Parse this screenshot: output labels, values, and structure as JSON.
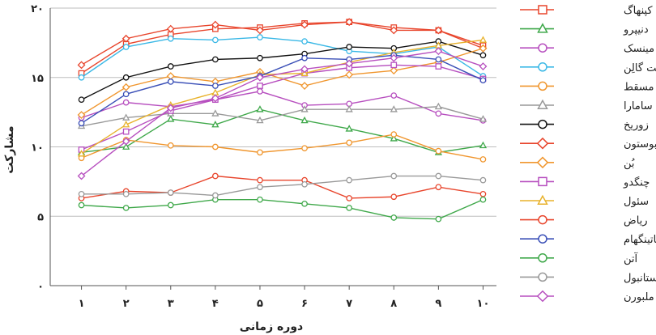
{
  "chart_data": {
    "type": "line",
    "xlabel": "دوره زمانی",
    "ylabel": "مشارکت",
    "x": [
      1,
      2,
      3,
      4,
      5,
      6,
      7,
      8,
      9,
      10
    ],
    "x_tick_labels": [
      "۱",
      "۲",
      "۳",
      "۴",
      "۵",
      "۶",
      "۷",
      "۸",
      "۹",
      "۱۰"
    ],
    "y_ticks": [
      0,
      5,
      10,
      15,
      20
    ],
    "y_tick_labels": [
      "۰",
      "۵",
      "۱۰",
      "۱۵",
      "۲۰"
    ],
    "ylim": [
      0,
      20
    ],
    "xlim": [
      0.3,
      10.3
    ],
    "grid": "horizontal",
    "legend_position": "right",
    "series": [
      {
        "name": "کپنهاگ",
        "color": "#e8452c",
        "marker": "square",
        "values": [
          15.3,
          17.4,
          18.1,
          18.5,
          18.6,
          18.9,
          19.0,
          18.6,
          18.4,
          17.3
        ]
      },
      {
        "name": "دنیپرو",
        "color": "#3fa84a",
        "marker": "triangle",
        "values": [
          9.6,
          10.0,
          12.0,
          11.6,
          12.7,
          11.9,
          11.3,
          10.6,
          9.6,
          10.1
        ]
      },
      {
        "name": "مینسک",
        "color": "#b74fbf",
        "marker": "circle",
        "values": [
          12.1,
          13.2,
          12.9,
          13.4,
          14.0,
          13.0,
          13.1,
          13.7,
          12.4,
          11.9
        ]
      },
      {
        "name": "سنت گالِن",
        "color": "#3ab8e6",
        "marker": "circle",
        "values": [
          15.0,
          17.2,
          17.8,
          17.7,
          17.9,
          17.6,
          16.9,
          16.7,
          17.2,
          15.1
        ]
      },
      {
        "name": "مسقط",
        "color": "#f0962e",
        "marker": "circle",
        "values": [
          9.2,
          10.5,
          10.1,
          10.0,
          9.6,
          9.9,
          10.3,
          10.9,
          9.7,
          9.1
        ]
      },
      {
        "name": "سامارا",
        "color": "#999999",
        "marker": "triangle",
        "values": [
          11.5,
          12.1,
          12.4,
          12.4,
          11.9,
          12.7,
          12.7,
          12.7,
          12.9,
          12.0
        ]
      },
      {
        "name": "زوریخ",
        "color": "#111111",
        "marker": "circle",
        "values": [
          13.4,
          15.0,
          15.8,
          16.3,
          16.4,
          16.7,
          17.2,
          17.1,
          17.6,
          16.6
        ]
      },
      {
        "name": "بوستون",
        "color": "#e8452c",
        "marker": "diamond",
        "values": [
          15.9,
          17.8,
          18.5,
          18.8,
          18.4,
          18.8,
          19.0,
          18.4,
          18.4,
          17.1
        ]
      },
      {
        "name": "بُن",
        "color": "#f0962e",
        "marker": "diamond",
        "values": [
          12.3,
          14.3,
          15.1,
          14.7,
          15.4,
          14.4,
          15.2,
          15.5,
          16.1,
          17.1
        ]
      },
      {
        "name": "چنگدو",
        "color": "#b74fbf",
        "marker": "square",
        "values": [
          9.8,
          11.1,
          12.6,
          13.4,
          14.4,
          15.3,
          15.7,
          15.9,
          15.8,
          14.9
        ]
      },
      {
        "name": "سئول",
        "color": "#e8b22c",
        "marker": "triangle",
        "values": [
          9.5,
          11.6,
          13.0,
          13.9,
          15.2,
          15.3,
          16.1,
          16.8,
          17.3,
          17.7
        ]
      },
      {
        "name": "ریاض",
        "color": "#e8452c",
        "marker": "circle",
        "values": [
          6.3,
          6.8,
          6.7,
          7.9,
          7.6,
          7.6,
          6.3,
          6.4,
          7.1,
          6.6
        ]
      },
      {
        "name": "ناتینگهام",
        "color": "#3a4fb7",
        "marker": "circle",
        "values": [
          11.7,
          13.8,
          14.7,
          14.4,
          15.1,
          16.4,
          16.3,
          16.6,
          16.3,
          14.8
        ]
      },
      {
        "name": "آتن",
        "color": "#3fa84a",
        "marker": "circle",
        "values": [
          5.8,
          5.6,
          5.8,
          6.2,
          6.2,
          5.9,
          5.6,
          4.9,
          4.8,
          6.2
        ]
      },
      {
        "name": "استانبول",
        "color": "#999999",
        "marker": "circle",
        "values": [
          6.6,
          6.6,
          6.7,
          6.5,
          7.1,
          7.3,
          7.6,
          7.9,
          7.9,
          7.6
        ]
      },
      {
        "name": "ملبورن",
        "color": "#b74fbf",
        "marker": "diamond",
        "values": [
          7.9,
          10.4,
          12.8,
          13.5,
          15.0,
          15.6,
          16.0,
          16.4,
          16.9,
          15.8
        ]
      }
    ]
  }
}
